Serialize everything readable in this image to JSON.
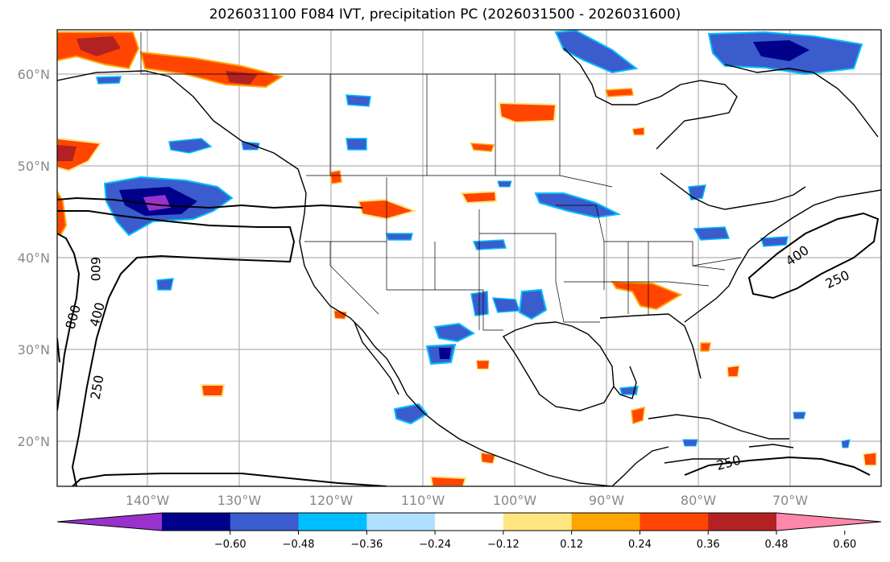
{
  "title": "2026031100 F084 IVT, precipitation PC (2026031500 - 2026031600)",
  "lat_labels": [
    "60°N",
    "50°N",
    "40°N",
    "30°N",
    "20°N"
  ],
  "lon_labels": [
    "140°W",
    "130°W",
    "120°W",
    "110°W",
    "100°W",
    "90°W",
    "80°W",
    "70°W"
  ],
  "ivt_contour_labels": [
    "800",
    "600",
    "400",
    "250",
    "400",
    "250",
    "250"
  ],
  "colorbar": {
    "ticks": [
      "−0.60",
      "−0.48",
      "−0.36",
      "−0.24",
      "−0.12",
      "0.12",
      "0.24",
      "0.36",
      "0.48",
      "0.60"
    ],
    "colors": [
      "#9932cc",
      "#00008b",
      "#3a5ccc",
      "#00bfff",
      "#b0e0ff",
      "#ffffff",
      "#ffe680",
      "#ffa500",
      "#ff4500",
      "#b22222",
      "#ff88aa"
    ]
  },
  "colors": {
    "neg_light": "#00bfff",
    "neg_mid": "#3a5ccc",
    "neg_dark": "#00008b",
    "neg_purple": "#9932cc",
    "pos_yellow": "#ffe680",
    "pos_orange": "#ffa500",
    "pos_red": "#ff4500",
    "pos_darkred": "#b22222"
  }
}
